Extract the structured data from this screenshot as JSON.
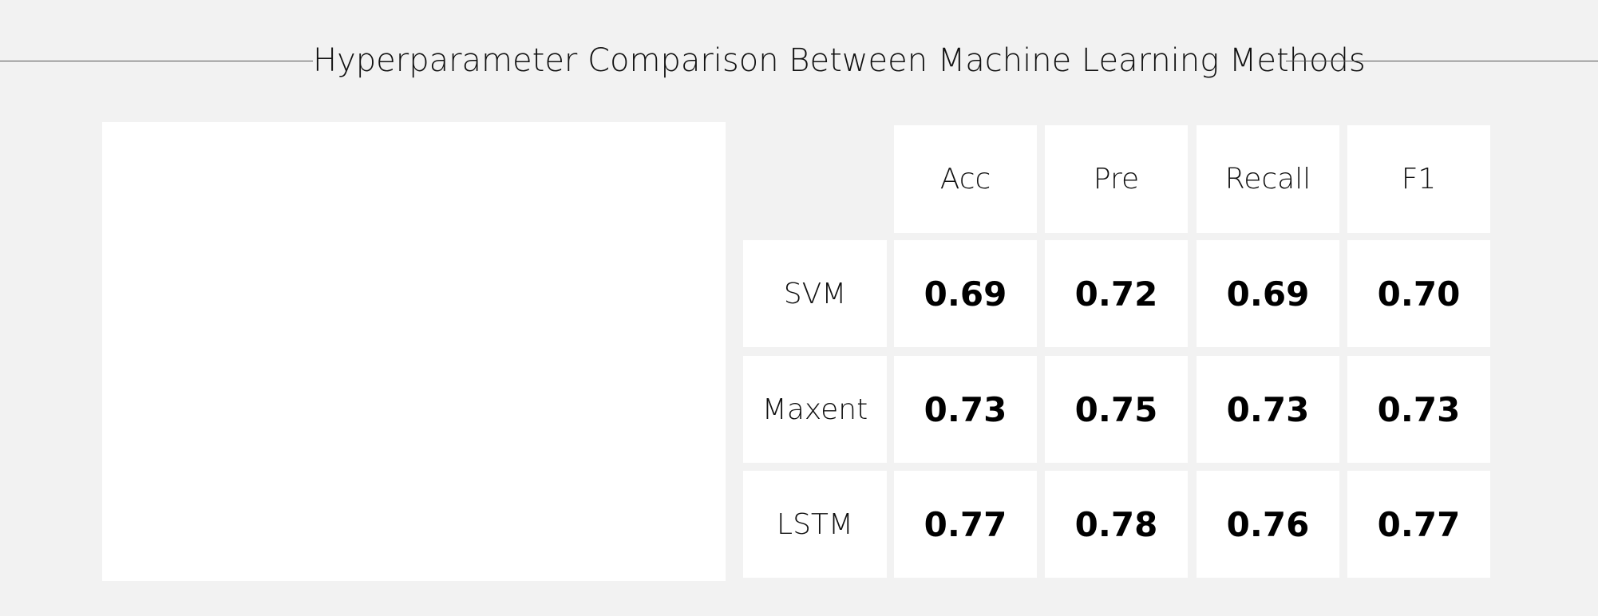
{
  "chart_data": {
    "type": "table",
    "title": "Hyperparameter Comparison Between Machine Learning Methods",
    "columns": [
      "Acc",
      "Pre",
      "Recall",
      "F1"
    ],
    "rows": [
      {
        "label": "SVM",
        "values": [
          "0.69",
          "0.72",
          "0.69",
          "0.70"
        ]
      },
      {
        "label": "Maxent",
        "values": [
          "0.73",
          "0.75",
          "0.73",
          "0.73"
        ]
      },
      {
        "label": "LSTM",
        "values": [
          "0.77",
          "0.78",
          "0.76",
          "0.77"
        ]
      }
    ]
  },
  "colors": {
    "background": "#f2f2f2",
    "cell": "#ffffff",
    "text": "#111111",
    "rule": "#555555"
  }
}
